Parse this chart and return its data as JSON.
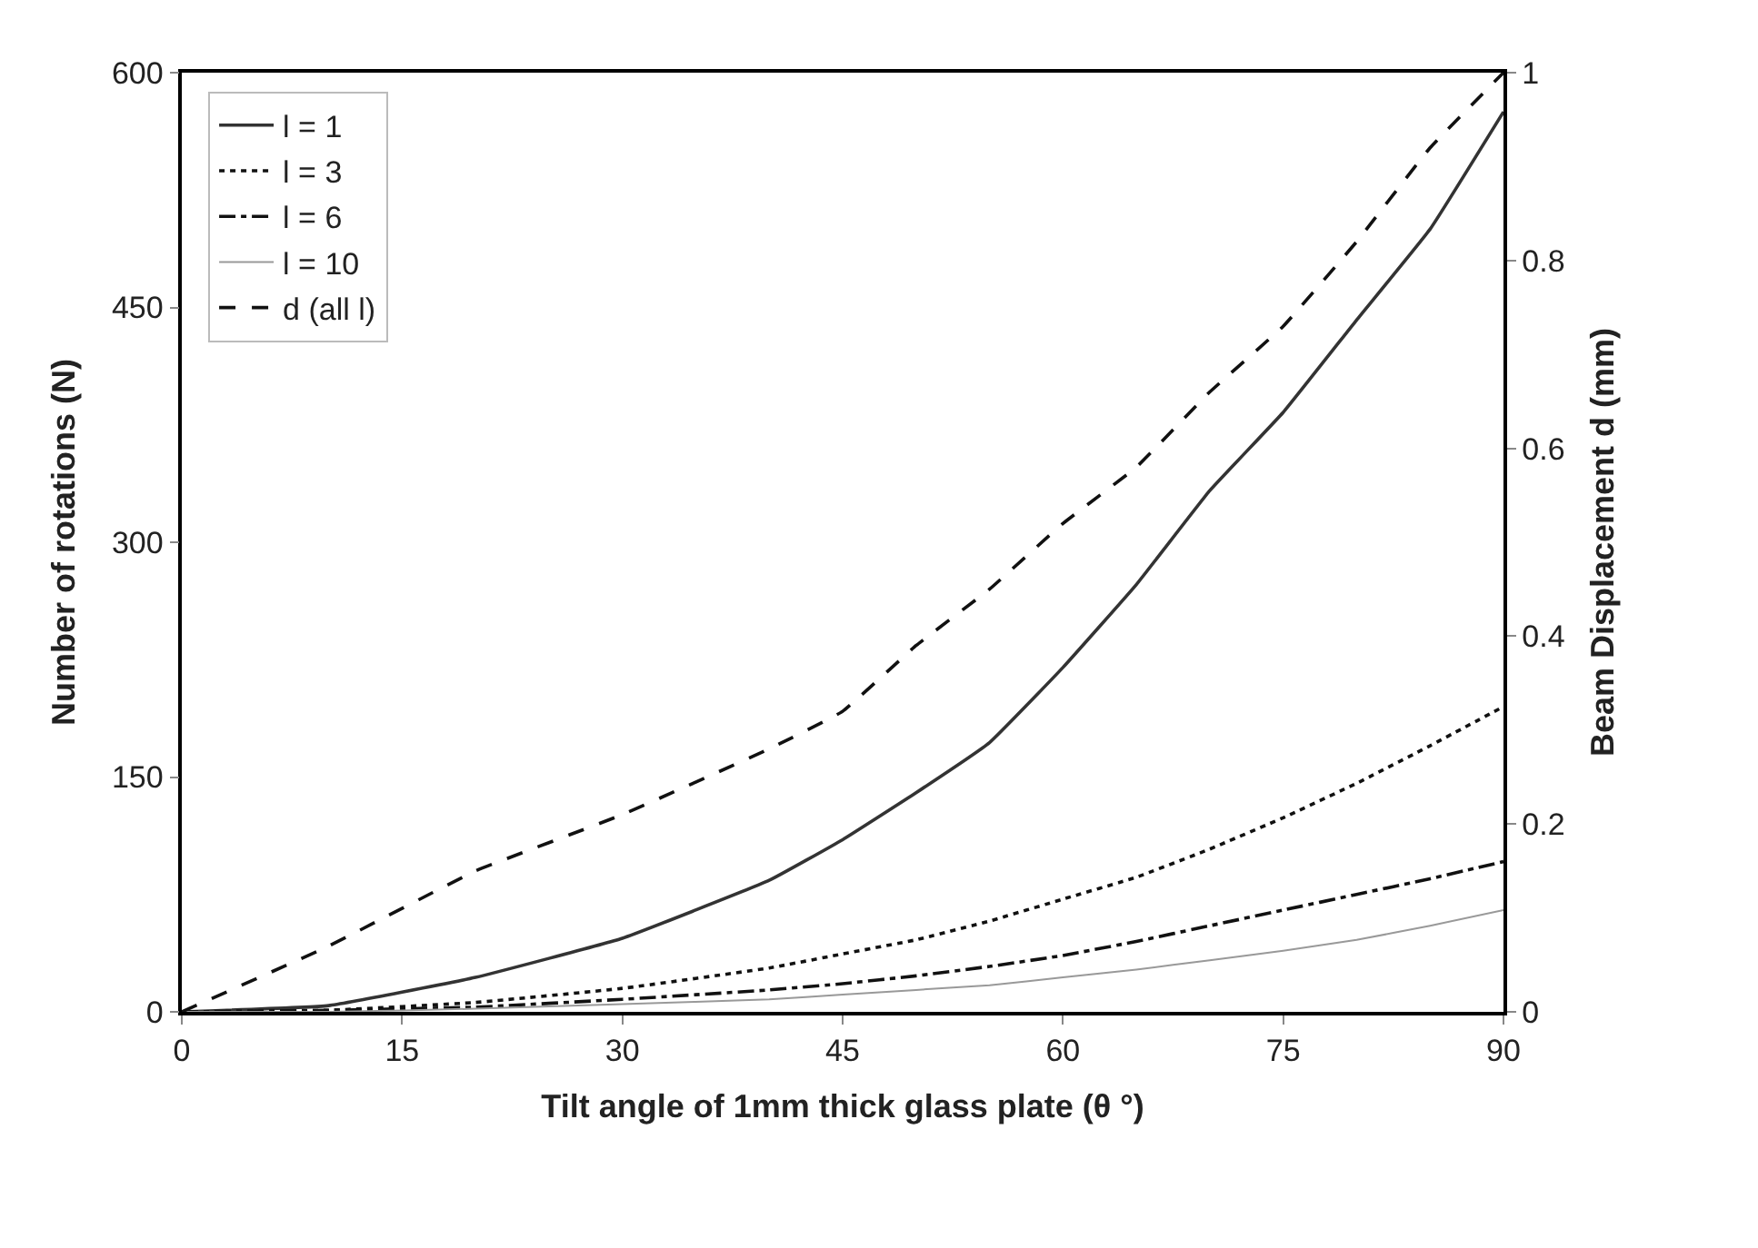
{
  "chart_data": {
    "type": "line",
    "xlabel": "Tilt angle of 1mm thick glass plate (θ °)",
    "ylabel": "Number of rotations (N)",
    "y2label": "Beam Displacement d (mm)",
    "x": [
      0,
      10,
      20,
      30,
      40,
      45,
      50,
      55,
      60,
      65,
      70,
      75,
      80,
      85,
      90
    ],
    "series": [
      {
        "name": "l = 1",
        "color": "#333333",
        "line_style": "solid",
        "values": [
          0,
          4,
          22,
          47,
          84,
          110,
          140,
          172,
          220,
          273,
          333,
          383,
          442,
          500,
          575
        ]
      },
      {
        "name": "l = 3",
        "color": "#111111",
        "line_style": "dotted",
        "values": [
          0,
          1,
          6,
          15,
          28,
          37,
          46,
          58,
          72,
          86,
          104,
          124,
          146,
          170,
          195
        ]
      },
      {
        "name": "l = 6",
        "color": "#111111",
        "line_style": "dashdot",
        "values": [
          0,
          1,
          3,
          8,
          14,
          18,
          23,
          29,
          36,
          45,
          55,
          65,
          75,
          85,
          96
        ]
      },
      {
        "name": "l = 10",
        "color": "#999999",
        "line_style": "solid",
        "values": [
          0,
          0,
          2,
          5,
          8,
          11,
          14,
          17,
          22,
          27,
          33,
          39,
          46,
          55,
          65
        ]
      },
      {
        "name": "d (all l)",
        "color": "#111111",
        "line_style": "dashed",
        "axis": "y2",
        "values": [
          0,
          0.07,
          0.15,
          0.21,
          0.28,
          0.32,
          0.39,
          0.45,
          0.52,
          0.58,
          0.66,
          0.73,
          0.82,
          0.92,
          1.0
        ]
      }
    ],
    "xlim": [
      0,
      90
    ],
    "xticks": [
      0,
      15,
      30,
      45,
      60,
      75,
      90
    ],
    "ylim": [
      0,
      600
    ],
    "yticks": [
      0,
      150,
      300,
      450,
      600
    ],
    "y2lim": [
      0,
      1
    ],
    "y2ticks": [
      0,
      0.2,
      0.4,
      0.6,
      0.8,
      1
    ],
    "legend": "top left",
    "marker": "none"
  }
}
